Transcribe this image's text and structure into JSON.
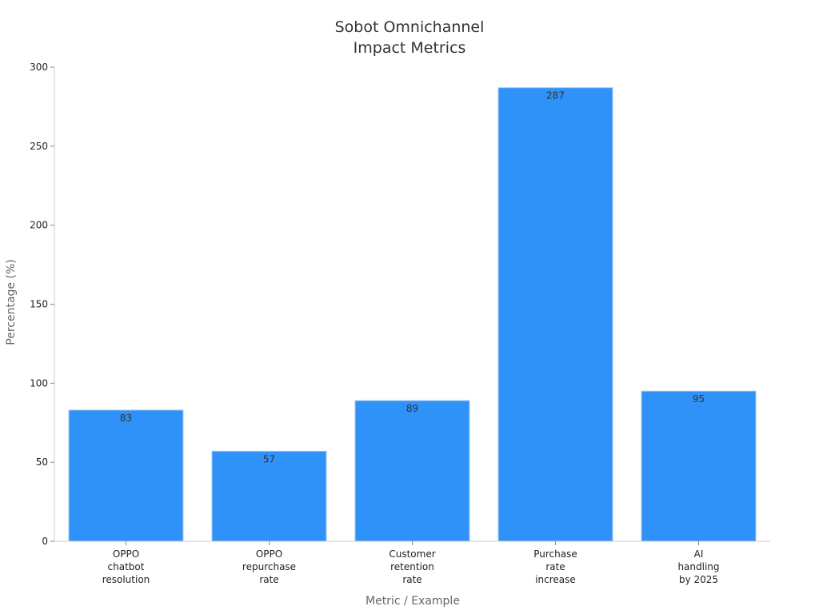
{
  "chart_data": {
    "type": "bar",
    "title": [
      "Sobot Omnichannel",
      "Impact Metrics"
    ],
    "xlabel": "Metric / Example",
    "ylabel": "Percentage (%)",
    "categories": [
      [
        "OPPO",
        "chatbot",
        "resolution"
      ],
      [
        "OPPO",
        "repurchase",
        "rate"
      ],
      [
        "Customer",
        "retention",
        "rate"
      ],
      [
        "Purchase",
        "rate",
        "increase"
      ],
      [
        "AI",
        "handling",
        "by 2025"
      ]
    ],
    "values": [
      83,
      57,
      89,
      287,
      95
    ],
    "data_labels": [
      "83",
      "57",
      "89",
      "287",
      "95"
    ],
    "ylim": [
      0,
      300
    ],
    "yticks": [
      0,
      50,
      100,
      150,
      200,
      250,
      300
    ],
    "ytick_labels": [
      "0",
      "50",
      "100",
      "150",
      "200",
      "250",
      "300"
    ],
    "grid": false,
    "legend": "none",
    "colors": {
      "bar": "#2f92f8",
      "axis": "#cccccc",
      "text": "#333333"
    }
  }
}
